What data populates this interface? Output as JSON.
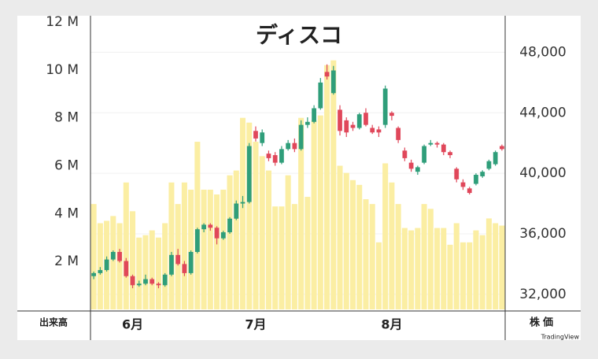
{
  "chart_data": {
    "type": "candlestick",
    "title": "ディスコ",
    "ylabel": "出来高",
    "y2label": "株価",
    "brand": "TradingView",
    "categories": [
      null,
      null,
      null,
      null,
      null,
      null,
      "6月",
      null,
      null,
      null,
      null,
      null,
      null,
      null,
      null,
      null,
      null,
      null,
      null,
      null,
      null,
      null,
      null,
      null,
      null,
      "7月",
      null,
      null,
      null,
      null,
      null,
      null,
      null,
      null,
      null,
      null,
      null,
      null,
      null,
      null,
      null,
      null,
      null,
      null,
      null,
      null,
      "8月",
      null,
      null,
      null,
      null,
      null,
      null,
      null,
      null,
      null,
      null,
      null,
      null,
      null,
      null,
      null,
      null,
      null
    ],
    "volume": {
      "color": "#fbeea3",
      "values": [
        4.4,
        3.6,
        3.7,
        3.9,
        3.6,
        5.3,
        4.1,
        3.0,
        3.1,
        3.3,
        3.0,
        3.6,
        5.3,
        4.4,
        5.3,
        5.0,
        7.0,
        5.0,
        5.0,
        4.8,
        5.0,
        5.6,
        5.8,
        8.0,
        7.8,
        7.0,
        6.4,
        5.8,
        4.3,
        4.3,
        5.6,
        4.4,
        8.0,
        4.7,
        7.9,
        8.1,
        10.2,
        10.4,
        6.0,
        5.7,
        5.4,
        5.2,
        4.6,
        4.4,
        2.8,
        6.1,
        5.3,
        4.4,
        3.4,
        3.3,
        3.4,
        4.4,
        4.2,
        3.4,
        3.4,
        2.7,
        3.6,
        2.8,
        2.8,
        3.3,
        3.1,
        3.8,
        3.6,
        3.5
      ]
    },
    "open": [
      33200,
      33400,
      33600,
      34300,
      34800,
      34200,
      33200,
      32600,
      32700,
      33000,
      32700,
      32600,
      33300,
      34600,
      34000,
      33400,
      34800,
      36300,
      36600,
      36400,
      35700,
      36100,
      37000,
      38000,
      38100,
      42800,
      42000,
      41300,
      41200,
      40700,
      41600,
      42000,
      41600,
      43200,
      43400,
      44300,
      46700,
      45300,
      44200,
      43500,
      43200,
      43000,
      44000,
      43000,
      42900,
      43200,
      44000,
      43000,
      41500,
      40700,
      40100,
      40700,
      41900,
      42000,
      41900,
      41400,
      40300,
      39400,
      39000,
      39300,
      39800,
      40300,
      40600,
      41800
    ],
    "high": [
      33500,
      33800,
      34500,
      34900,
      35000,
      34400,
      33300,
      32900,
      33300,
      33100,
      32800,
      33400,
      34800,
      35000,
      34200,
      34900,
      36400,
      36700,
      36700,
      36500,
      36200,
      37100,
      38200,
      38500,
      42000,
      43100,
      42900,
      41500,
      41400,
      41800,
      42200,
      42300,
      43500,
      43700,
      44500,
      46300,
      47200,
      47100,
      44500,
      43700,
      43400,
      44000,
      44300,
      43200,
      43100,
      45800,
      44100,
      43100,
      41700,
      40900,
      40500,
      41900,
      42200,
      42100,
      42000,
      41500,
      40400,
      39600,
      39100,
      40000,
      40200,
      40900,
      41500,
      41900
    ],
    "low": [
      33000,
      33300,
      33500,
      34200,
      34100,
      33100,
      32400,
      32500,
      32600,
      32600,
      32400,
      32500,
      33200,
      33900,
      33200,
      33300,
      34700,
      36100,
      36200,
      35300,
      35600,
      36000,
      36900,
      37700,
      38000,
      42100,
      41800,
      40800,
      40500,
      40600,
      41500,
      41400,
      41500,
      43000,
      43300,
      44200,
      46200,
      45200,
      42500,
      42400,
      42800,
      42900,
      43100,
      42600,
      42400,
      43000,
      43500,
      42000,
      40800,
      40100,
      39900,
      40600,
      41800,
      41700,
      41200,
      41000,
      39400,
      38900,
      38600,
      39200,
      39700,
      40200,
      40500,
      41500
    ],
    "close": [
      33400,
      33600,
      34300,
      34800,
      34200,
      33200,
      32600,
      32700,
      33000,
      32700,
      32600,
      33300,
      34600,
      34000,
      33400,
      34800,
      36300,
      36600,
      36400,
      35700,
      36100,
      37000,
      38000,
      38100,
      41800,
      42300,
      42700,
      41000,
      40700,
      41600,
      42000,
      41600,
      43200,
      43400,
      44300,
      46000,
      46400,
      46800,
      42800,
      42700,
      43000,
      43900,
      43200,
      42700,
      42700,
      45600,
      43800,
      42200,
      41000,
      40300,
      40400,
      41800,
      42000,
      41900,
      41400,
      41200,
      39600,
      39100,
      38700,
      39900,
      40100,
      40800,
      41400,
      41600
    ],
    "up_color": "#2f9e7a",
    "down_color": "#e0475a",
    "ylim": [
      0,
      12
    ],
    "yticks": [
      {
        "value": 2,
        "label": "2 M"
      },
      {
        "value": 4,
        "label": "4 M"
      },
      {
        "value": 6,
        "label": "6 M"
      },
      {
        "value": 8,
        "label": "8 M"
      },
      {
        "value": 10,
        "label": "10 M"
      },
      {
        "value": 12,
        "label": "12 M"
      }
    ],
    "y2lim": [
      31000,
      50000
    ],
    "y2ticks": [
      {
        "value": 32000,
        "label": "32,000"
      },
      {
        "value": 36000,
        "label": "36,000"
      },
      {
        "value": 40000,
        "label": "40,000"
      },
      {
        "value": 44000,
        "label": "44,000"
      },
      {
        "value": 48000,
        "label": "48,000"
      }
    ],
    "grid": true
  }
}
